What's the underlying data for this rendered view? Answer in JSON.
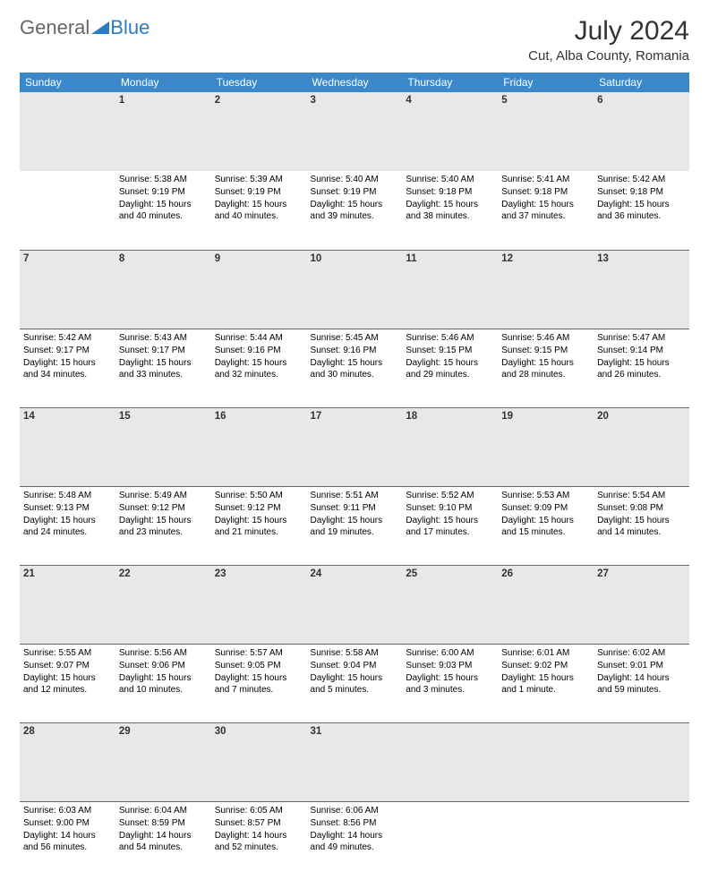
{
  "logo": {
    "text1": "General",
    "text2": "Blue"
  },
  "title": "July 2024",
  "location": "Cut, Alba County, Romania",
  "colors": {
    "header_bg": "#3a88c9",
    "header_text": "#ffffff",
    "daynum_bg": "#e8e8e8",
    "border": "#6a6a6a",
    "logo_blue": "#2b7cc4"
  },
  "daysOfWeek": [
    "Sunday",
    "Monday",
    "Tuesday",
    "Wednesday",
    "Thursday",
    "Friday",
    "Saturday"
  ],
  "weeks": [
    [
      {
        "n": "",
        "sunrise": "",
        "sunset": "",
        "daylight": ""
      },
      {
        "n": "1",
        "sunrise": "Sunrise: 5:38 AM",
        "sunset": "Sunset: 9:19 PM",
        "daylight": "Daylight: 15 hours and 40 minutes."
      },
      {
        "n": "2",
        "sunrise": "Sunrise: 5:39 AM",
        "sunset": "Sunset: 9:19 PM",
        "daylight": "Daylight: 15 hours and 40 minutes."
      },
      {
        "n": "3",
        "sunrise": "Sunrise: 5:40 AM",
        "sunset": "Sunset: 9:19 PM",
        "daylight": "Daylight: 15 hours and 39 minutes."
      },
      {
        "n": "4",
        "sunrise": "Sunrise: 5:40 AM",
        "sunset": "Sunset: 9:18 PM",
        "daylight": "Daylight: 15 hours and 38 minutes."
      },
      {
        "n": "5",
        "sunrise": "Sunrise: 5:41 AM",
        "sunset": "Sunset: 9:18 PM",
        "daylight": "Daylight: 15 hours and 37 minutes."
      },
      {
        "n": "6",
        "sunrise": "Sunrise: 5:42 AM",
        "sunset": "Sunset: 9:18 PM",
        "daylight": "Daylight: 15 hours and 36 minutes."
      }
    ],
    [
      {
        "n": "7",
        "sunrise": "Sunrise: 5:42 AM",
        "sunset": "Sunset: 9:17 PM",
        "daylight": "Daylight: 15 hours and 34 minutes."
      },
      {
        "n": "8",
        "sunrise": "Sunrise: 5:43 AM",
        "sunset": "Sunset: 9:17 PM",
        "daylight": "Daylight: 15 hours and 33 minutes."
      },
      {
        "n": "9",
        "sunrise": "Sunrise: 5:44 AM",
        "sunset": "Sunset: 9:16 PM",
        "daylight": "Daylight: 15 hours and 32 minutes."
      },
      {
        "n": "10",
        "sunrise": "Sunrise: 5:45 AM",
        "sunset": "Sunset: 9:16 PM",
        "daylight": "Daylight: 15 hours and 30 minutes."
      },
      {
        "n": "11",
        "sunrise": "Sunrise: 5:46 AM",
        "sunset": "Sunset: 9:15 PM",
        "daylight": "Daylight: 15 hours and 29 minutes."
      },
      {
        "n": "12",
        "sunrise": "Sunrise: 5:46 AM",
        "sunset": "Sunset: 9:15 PM",
        "daylight": "Daylight: 15 hours and 28 minutes."
      },
      {
        "n": "13",
        "sunrise": "Sunrise: 5:47 AM",
        "sunset": "Sunset: 9:14 PM",
        "daylight": "Daylight: 15 hours and 26 minutes."
      }
    ],
    [
      {
        "n": "14",
        "sunrise": "Sunrise: 5:48 AM",
        "sunset": "Sunset: 9:13 PM",
        "daylight": "Daylight: 15 hours and 24 minutes."
      },
      {
        "n": "15",
        "sunrise": "Sunrise: 5:49 AM",
        "sunset": "Sunset: 9:12 PM",
        "daylight": "Daylight: 15 hours and 23 minutes."
      },
      {
        "n": "16",
        "sunrise": "Sunrise: 5:50 AM",
        "sunset": "Sunset: 9:12 PM",
        "daylight": "Daylight: 15 hours and 21 minutes."
      },
      {
        "n": "17",
        "sunrise": "Sunrise: 5:51 AM",
        "sunset": "Sunset: 9:11 PM",
        "daylight": "Daylight: 15 hours and 19 minutes."
      },
      {
        "n": "18",
        "sunrise": "Sunrise: 5:52 AM",
        "sunset": "Sunset: 9:10 PM",
        "daylight": "Daylight: 15 hours and 17 minutes."
      },
      {
        "n": "19",
        "sunrise": "Sunrise: 5:53 AM",
        "sunset": "Sunset: 9:09 PM",
        "daylight": "Daylight: 15 hours and 15 minutes."
      },
      {
        "n": "20",
        "sunrise": "Sunrise: 5:54 AM",
        "sunset": "Sunset: 9:08 PM",
        "daylight": "Daylight: 15 hours and 14 minutes."
      }
    ],
    [
      {
        "n": "21",
        "sunrise": "Sunrise: 5:55 AM",
        "sunset": "Sunset: 9:07 PM",
        "daylight": "Daylight: 15 hours and 12 minutes."
      },
      {
        "n": "22",
        "sunrise": "Sunrise: 5:56 AM",
        "sunset": "Sunset: 9:06 PM",
        "daylight": "Daylight: 15 hours and 10 minutes."
      },
      {
        "n": "23",
        "sunrise": "Sunrise: 5:57 AM",
        "sunset": "Sunset: 9:05 PM",
        "daylight": "Daylight: 15 hours and 7 minutes."
      },
      {
        "n": "24",
        "sunrise": "Sunrise: 5:58 AM",
        "sunset": "Sunset: 9:04 PM",
        "daylight": "Daylight: 15 hours and 5 minutes."
      },
      {
        "n": "25",
        "sunrise": "Sunrise: 6:00 AM",
        "sunset": "Sunset: 9:03 PM",
        "daylight": "Daylight: 15 hours and 3 minutes."
      },
      {
        "n": "26",
        "sunrise": "Sunrise: 6:01 AM",
        "sunset": "Sunset: 9:02 PM",
        "daylight": "Daylight: 15 hours and 1 minute."
      },
      {
        "n": "27",
        "sunrise": "Sunrise: 6:02 AM",
        "sunset": "Sunset: 9:01 PM",
        "daylight": "Daylight: 14 hours and 59 minutes."
      }
    ],
    [
      {
        "n": "28",
        "sunrise": "Sunrise: 6:03 AM",
        "sunset": "Sunset: 9:00 PM",
        "daylight": "Daylight: 14 hours and 56 minutes."
      },
      {
        "n": "29",
        "sunrise": "Sunrise: 6:04 AM",
        "sunset": "Sunset: 8:59 PM",
        "daylight": "Daylight: 14 hours and 54 minutes."
      },
      {
        "n": "30",
        "sunrise": "Sunrise: 6:05 AM",
        "sunset": "Sunset: 8:57 PM",
        "daylight": "Daylight: 14 hours and 52 minutes."
      },
      {
        "n": "31",
        "sunrise": "Sunrise: 6:06 AM",
        "sunset": "Sunset: 8:56 PM",
        "daylight": "Daylight: 14 hours and 49 minutes."
      },
      {
        "n": "",
        "sunrise": "",
        "sunset": "",
        "daylight": ""
      },
      {
        "n": "",
        "sunrise": "",
        "sunset": "",
        "daylight": ""
      },
      {
        "n": "",
        "sunrise": "",
        "sunset": "",
        "daylight": ""
      }
    ]
  ]
}
